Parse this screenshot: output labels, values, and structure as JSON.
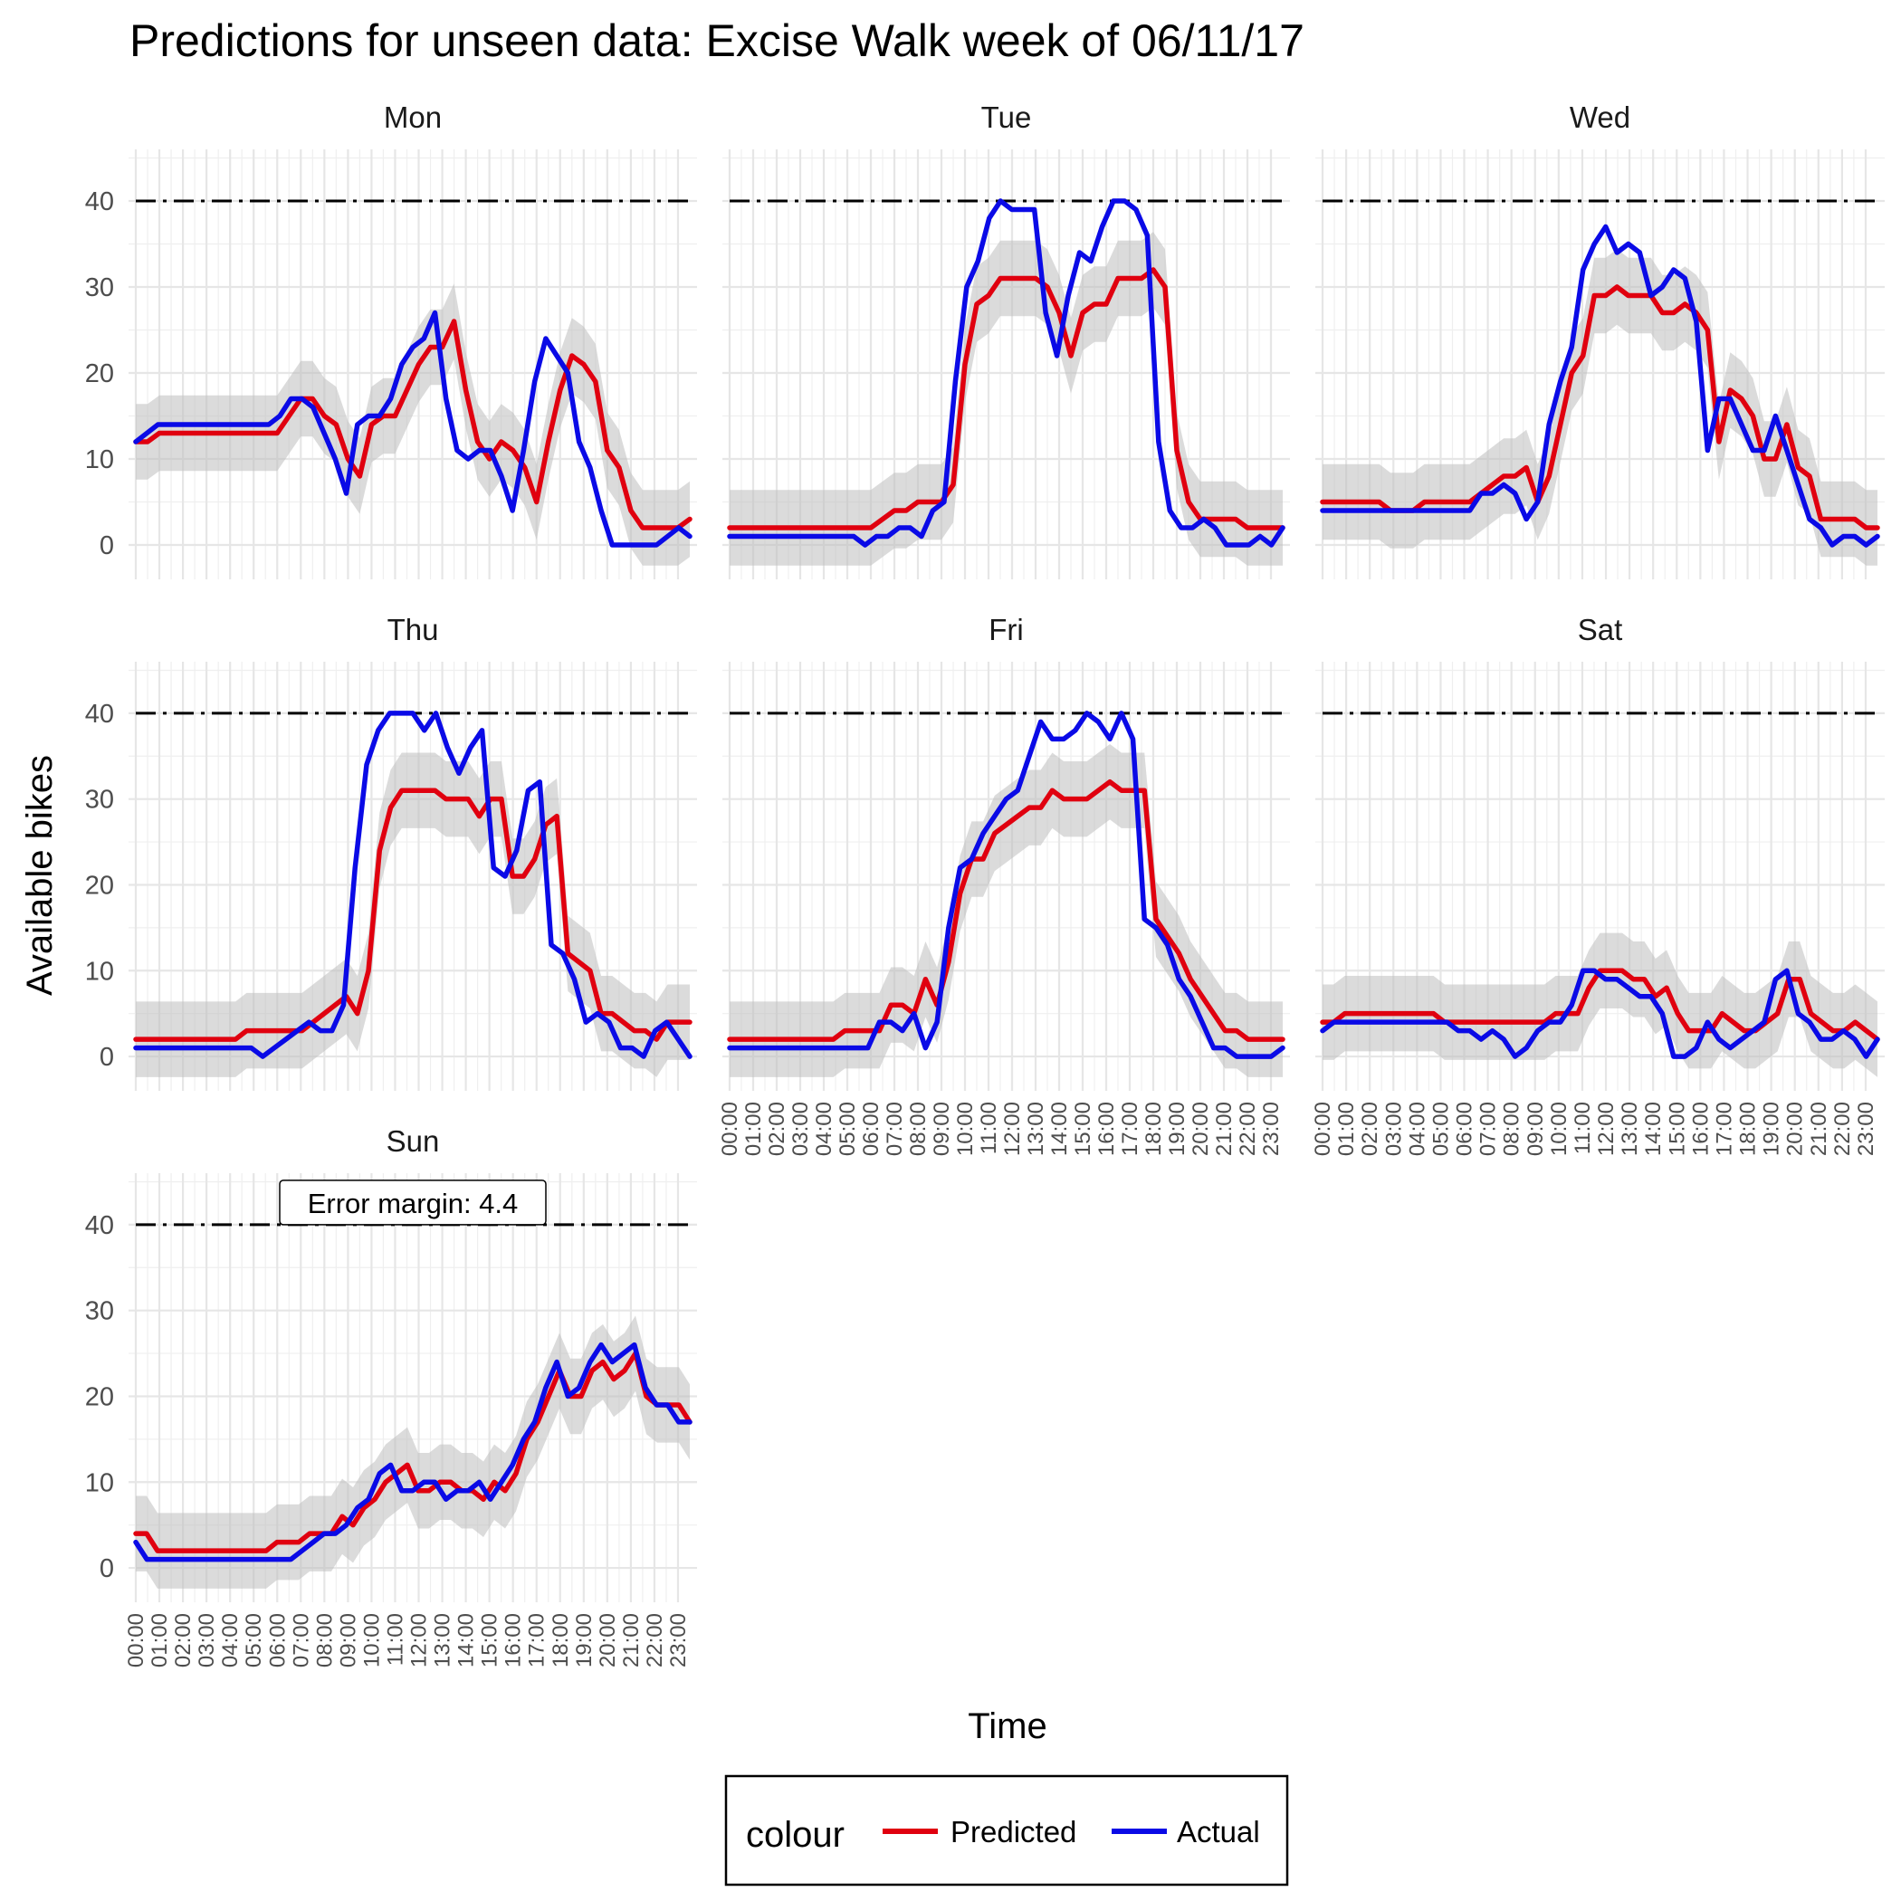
{
  "chart_data": {
    "type": "line",
    "title": "Predictions for unseen data: Excise Walk week of 06/11/17",
    "xlabel": "Time",
    "ylabel": "Available bikes",
    "ylim": [
      -4,
      46
    ],
    "yticks": [
      0,
      10,
      20,
      30,
      40
    ],
    "capacity": 40,
    "error_margin": 4.4,
    "annotation": "Error margin: 4.4",
    "annotation_panel": "Sun",
    "grid": true,
    "x_ticks": [
      "00:00",
      "01:00",
      "02:00",
      "03:00",
      "04:00",
      "05:00",
      "06:00",
      "07:00",
      "08:00",
      "09:00",
      "10:00",
      "11:00",
      "12:00",
      "13:00",
      "14:00",
      "15:00",
      "16:00",
      "17:00",
      "18:00",
      "19:00",
      "20:00",
      "21:00",
      "22:00",
      "23:00"
    ],
    "x_unit": "hours, sampled every 30 minutes from 00:00 to 23:30",
    "colors": {
      "Predicted": "#e0000f",
      "Actual": "#0a0ae6",
      "ribbon": "#bdbdbd",
      "capacity_line": "#000000"
    },
    "legend": {
      "title": "colour",
      "position": "bottom",
      "entries": [
        "Predicted",
        "Actual"
      ]
    },
    "panels": [
      {
        "name": "Mon",
        "predicted": [
          12,
          12,
          13,
          13,
          13,
          13,
          13,
          13,
          13,
          13,
          13,
          13,
          13,
          15,
          17,
          17,
          15,
          14,
          10,
          8,
          14,
          15,
          15,
          18,
          21,
          23,
          23,
          26,
          18,
          12,
          10,
          12,
          11,
          9,
          5,
          12,
          18,
          22,
          21,
          19,
          11,
          9,
          4,
          2,
          2,
          2,
          2,
          3
        ],
        "actual": [
          12,
          13,
          14,
          14,
          14,
          14,
          14,
          14,
          14,
          14,
          14,
          14,
          14,
          15,
          17,
          17,
          16,
          13,
          10,
          6,
          14,
          15,
          15,
          17,
          21,
          23,
          24,
          27,
          17,
          11,
          10,
          11,
          11,
          8,
          4,
          11,
          19,
          24,
          22,
          20,
          12,
          9,
          4,
          0,
          0,
          0,
          0,
          0,
          1,
          2,
          1
        ]
      },
      {
        "name": "Tue",
        "predicted": [
          2,
          2,
          2,
          2,
          2,
          2,
          2,
          2,
          2,
          2,
          2,
          2,
          2,
          3,
          4,
          4,
          5,
          5,
          5,
          7,
          21,
          28,
          29,
          31,
          31,
          31,
          31,
          30,
          27,
          22,
          27,
          28,
          28,
          31,
          31,
          31,
          32,
          30,
          11,
          5,
          3,
          3,
          3,
          3,
          2,
          2,
          2,
          2
        ],
        "actual": [
          1,
          1,
          1,
          1,
          1,
          1,
          1,
          1,
          1,
          1,
          1,
          1,
          0,
          1,
          1,
          2,
          2,
          1,
          4,
          5,
          19,
          30,
          33,
          38,
          40,
          39,
          39,
          39,
          27,
          22,
          29,
          34,
          33,
          37,
          40,
          40,
          39,
          36,
          12,
          4,
          2,
          2,
          3,
          2,
          0,
          0,
          0,
          1,
          0,
          2
        ]
      },
      {
        "name": "Wed",
        "predicted": [
          5,
          5,
          5,
          5,
          5,
          5,
          4,
          4,
          4,
          5,
          5,
          5,
          5,
          5,
          6,
          7,
          8,
          8,
          9,
          5,
          8,
          14,
          20,
          22,
          29,
          29,
          30,
          29,
          29,
          29,
          27,
          27,
          28,
          27,
          25,
          12,
          18,
          17,
          15,
          10,
          10,
          14,
          9,
          8,
          3,
          3,
          3,
          3,
          2,
          2
        ],
        "actual": [
          4,
          4,
          4,
          4,
          4,
          4,
          4,
          4,
          4,
          4,
          4,
          4,
          4,
          4,
          6,
          6,
          7,
          6,
          3,
          5,
          14,
          19,
          23,
          32,
          35,
          37,
          34,
          35,
          34,
          29,
          30,
          32,
          31,
          26,
          11,
          17,
          17,
          14,
          11,
          11,
          15,
          11,
          7,
          3,
          2,
          0,
          1,
          1,
          0,
          1
        ]
      },
      {
        "name": "Thu",
        "predicted": [
          2,
          2,
          2,
          2,
          2,
          2,
          2,
          2,
          2,
          2,
          3,
          3,
          3,
          3,
          3,
          3,
          4,
          5,
          6,
          7,
          5,
          10,
          24,
          29,
          31,
          31,
          31,
          31,
          30,
          30,
          30,
          28,
          30,
          30,
          21,
          21,
          23,
          27,
          28,
          12,
          11,
          10,
          5,
          5,
          4,
          3,
          3,
          2,
          4,
          4,
          4
        ],
        "actual": [
          1,
          1,
          1,
          1,
          1,
          1,
          1,
          1,
          1,
          1,
          1,
          0,
          1,
          2,
          3,
          4,
          3,
          3,
          6,
          22,
          34,
          38,
          40,
          40,
          40,
          38,
          40,
          36,
          33,
          36,
          38,
          22,
          21,
          24,
          31,
          32,
          13,
          12,
          9,
          4,
          5,
          4,
          1,
          1,
          0,
          3,
          4,
          2,
          0
        ]
      },
      {
        "name": "Fri",
        "predicted": [
          2,
          2,
          2,
          2,
          2,
          2,
          2,
          2,
          2,
          2,
          3,
          3,
          3,
          3,
          6,
          6,
          5,
          9,
          6,
          11,
          19,
          23,
          23,
          26,
          27,
          28,
          29,
          29,
          31,
          30,
          30,
          30,
          31,
          32,
          31,
          31,
          31,
          16,
          14,
          12,
          9,
          7,
          5,
          3,
          3,
          2,
          2,
          2,
          2
        ],
        "actual": [
          1,
          1,
          1,
          1,
          1,
          1,
          1,
          1,
          1,
          1,
          1,
          1,
          1,
          4,
          4,
          3,
          5,
          1,
          4,
          15,
          22,
          23,
          26,
          28,
          30,
          31,
          35,
          39,
          37,
          37,
          38,
          40,
          39,
          37,
          40,
          37,
          16,
          15,
          13,
          9,
          7,
          4,
          1,
          1,
          0,
          0,
          0,
          0,
          1
        ]
      },
      {
        "name": "Sat",
        "predicted": [
          4,
          4,
          5,
          5,
          5,
          5,
          5,
          5,
          5,
          5,
          5,
          4,
          4,
          4,
          4,
          4,
          4,
          4,
          4,
          4,
          4,
          5,
          5,
          5,
          8,
          10,
          10,
          10,
          9,
          9,
          7,
          8,
          5,
          3,
          3,
          3,
          5,
          4,
          3,
          3,
          4,
          5,
          9,
          9,
          5,
          4,
          3,
          3,
          4,
          3,
          2
        ],
        "actual": [
          3,
          4,
          4,
          4,
          4,
          4,
          4,
          4,
          4,
          4,
          4,
          4,
          3,
          3,
          2,
          3,
          2,
          0,
          1,
          3,
          4,
          4,
          6,
          10,
          10,
          9,
          9,
          8,
          7,
          7,
          5,
          0,
          0,
          1,
          4,
          2,
          1,
          2,
          3,
          4,
          9,
          10,
          5,
          4,
          2,
          2,
          3,
          2,
          0,
          2
        ]
      },
      {
        "name": "Sun",
        "predicted": [
          4,
          4,
          2,
          2,
          2,
          2,
          2,
          2,
          2,
          2,
          2,
          2,
          2,
          3,
          3,
          3,
          4,
          4,
          4,
          6,
          5,
          7,
          8,
          10,
          11,
          12,
          9,
          9,
          10,
          10,
          9,
          9,
          8,
          10,
          9,
          11,
          15,
          17,
          20,
          23,
          20,
          20,
          23,
          24,
          22,
          23,
          25,
          20,
          19,
          19,
          19,
          17
        ],
        "actual": [
          3,
          1,
          1,
          1,
          1,
          1,
          1,
          1,
          1,
          1,
          1,
          1,
          1,
          1,
          1,
          2,
          3,
          4,
          4,
          5,
          7,
          8,
          11,
          12,
          9,
          9,
          10,
          10,
          8,
          9,
          9,
          10,
          8,
          10,
          12,
          15,
          17,
          21,
          24,
          20,
          21,
          24,
          26,
          24,
          25,
          26,
          21,
          19,
          19,
          17,
          17
        ]
      }
    ]
  }
}
